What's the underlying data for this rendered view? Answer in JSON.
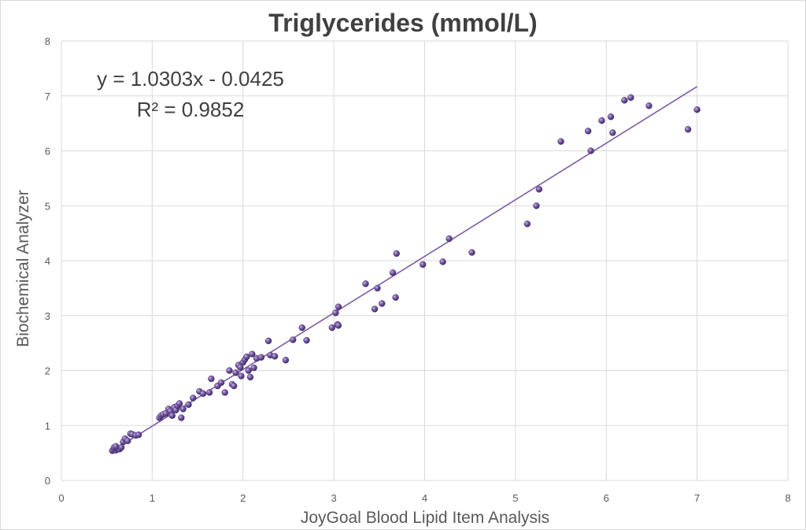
{
  "chart_data": {
    "type": "scatter",
    "title": "Triglycerides (mmol/L)",
    "xlabel": "JoyGoal Blood Lipid Item Analysis",
    "ylabel": "Biochemical  Analyzer",
    "xlim": [
      0,
      8
    ],
    "ylim": [
      0,
      8
    ],
    "xticks": [
      "0",
      "1",
      "2",
      "3",
      "4",
      "5",
      "6",
      "7",
      "8"
    ],
    "yticks": [
      "0",
      "1",
      "2",
      "3",
      "4",
      "5",
      "6",
      "7",
      "8"
    ],
    "grid": true,
    "legend": "none",
    "marker_color": "#7b5ea7",
    "trendline": {
      "slope": 1.0303,
      "intercept": -0.0425,
      "x_range": [
        0.55,
        7.0
      ],
      "equation": "y = 1.0303x - 0.0425",
      "r_squared": "R² = 0.9852"
    },
    "points": [
      [
        0.56,
        0.54
      ],
      [
        0.58,
        0.56
      ],
      [
        0.6,
        0.55
      ],
      [
        0.62,
        0.58
      ],
      [
        0.64,
        0.57
      ],
      [
        0.66,
        0.6
      ],
      [
        0.68,
        0.7
      ],
      [
        0.7,
        0.76
      ],
      [
        0.73,
        0.72
      ],
      [
        0.76,
        0.85
      ],
      [
        0.78,
        0.84
      ],
      [
        0.82,
        0.82
      ],
      [
        0.85,
        0.83
      ],
      [
        0.58,
        0.6
      ],
      [
        0.6,
        0.62
      ],
      [
        1.08,
        1.14
      ],
      [
        1.1,
        1.18
      ],
      [
        1.12,
        1.2
      ],
      [
        1.15,
        1.22
      ],
      [
        1.18,
        1.3
      ],
      [
        1.2,
        1.26
      ],
      [
        1.22,
        1.18
      ],
      [
        1.24,
        1.33
      ],
      [
        1.26,
        1.28
      ],
      [
        1.28,
        1.36
      ],
      [
        1.3,
        1.4
      ],
      [
        1.32,
        1.14
      ],
      [
        1.34,
        1.3
      ],
      [
        1.4,
        1.38
      ],
      [
        1.45,
        1.5
      ],
      [
        1.52,
        1.62
      ],
      [
        1.56,
        1.58
      ],
      [
        1.63,
        1.6
      ],
      [
        1.65,
        1.85
      ],
      [
        1.72,
        1.72
      ],
      [
        1.76,
        1.78
      ],
      [
        1.8,
        1.6
      ],
      [
        1.85,
        2.0
      ],
      [
        1.88,
        1.75
      ],
      [
        1.9,
        1.72
      ],
      [
        1.92,
        1.96
      ],
      [
        1.95,
        2.1
      ],
      [
        1.97,
        2.06
      ],
      [
        1.98,
        1.9
      ],
      [
        2.0,
        2.15
      ],
      [
        2.02,
        2.2
      ],
      [
        2.04,
        2.25
      ],
      [
        2.06,
        2.0
      ],
      [
        2.08,
        1.88
      ],
      [
        2.1,
        2.3
      ],
      [
        2.12,
        2.05
      ],
      [
        2.15,
        2.22
      ],
      [
        2.2,
        2.24
      ],
      [
        2.28,
        2.54
      ],
      [
        2.3,
        2.28
      ],
      [
        2.35,
        2.26
      ],
      [
        2.47,
        2.19
      ],
      [
        2.55,
        2.56
      ],
      [
        2.65,
        2.78
      ],
      [
        2.7,
        2.55
      ],
      [
        2.98,
        2.78
      ],
      [
        3.02,
        3.05
      ],
      [
        3.04,
        2.84
      ],
      [
        3.05,
        3.16
      ],
      [
        3.05,
        2.82
      ],
      [
        3.35,
        3.58
      ],
      [
        3.45,
        3.12
      ],
      [
        3.48,
        3.5
      ],
      [
        3.53,
        3.22
      ],
      [
        3.65,
        3.78
      ],
      [
        3.68,
        3.33
      ],
      [
        3.69,
        4.13
      ],
      [
        3.98,
        3.93
      ],
      [
        4.2,
        3.98
      ],
      [
        4.27,
        4.4
      ],
      [
        4.52,
        4.15
      ],
      [
        5.13,
        4.67
      ],
      [
        5.23,
        5.0
      ],
      [
        5.26,
        5.3
      ],
      [
        5.5,
        6.17
      ],
      [
        5.8,
        6.36
      ],
      [
        5.83,
        6.0
      ],
      [
        5.95,
        6.55
      ],
      [
        6.05,
        6.62
      ],
      [
        6.07,
        6.33
      ],
      [
        6.2,
        6.92
      ],
      [
        6.27,
        6.97
      ],
      [
        6.47,
        6.82
      ],
      [
        6.9,
        6.39
      ],
      [
        7.0,
        6.75
      ]
    ]
  }
}
